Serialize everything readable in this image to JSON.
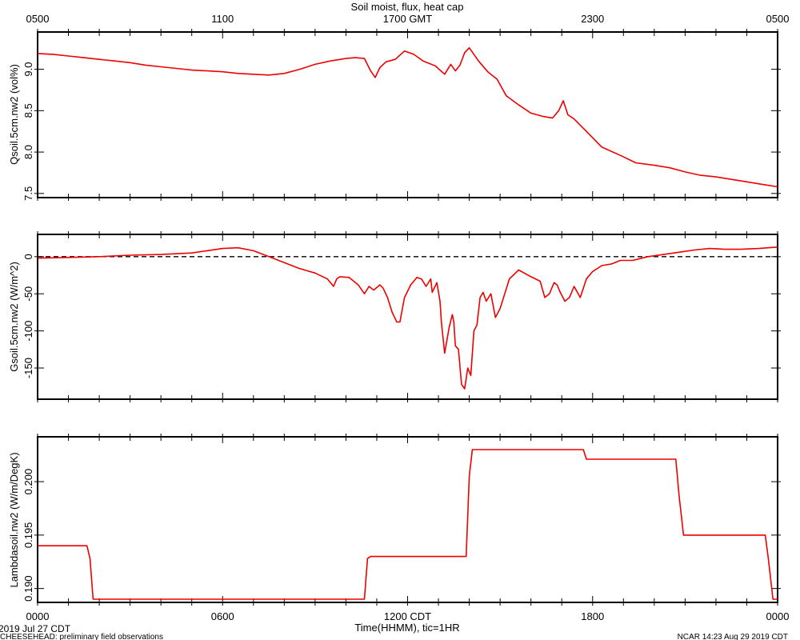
{
  "chart_data": {
    "type": "line",
    "title": "Soil moist, flux, heat cap",
    "top_axis": {
      "ticks": [
        "0500",
        "1100",
        "1700 GMT",
        "2300",
        "0500"
      ]
    },
    "bottom_axis": {
      "ticks": [
        "0000",
        "0600",
        "1200 CDT",
        "1800",
        "0000"
      ],
      "label": "Time(HHMM), tic=1HR"
    },
    "x_range_hours": [
      0,
      24
    ],
    "footer": {
      "date": "2019 Jul 27 CDT",
      "project": "CHEESEHEAD: preliminary field observations",
      "stamp": "NCAR 14:23 Aug 29 2019 CDT"
    },
    "colors": {
      "series": "#ee0000",
      "axes": "#000000"
    },
    "panels": [
      {
        "ylabel": "Qsoil.5cm.nw2 (vol%)",
        "ylim": [
          7.45,
          9.45
        ],
        "yticks": [
          7.5,
          8.0,
          8.5,
          9.0
        ],
        "ytick_labels": [
          "7.5",
          "8.0",
          "8.5",
          "9.0"
        ],
        "series": [
          {
            "x": [
              0,
              0.5,
              1,
              1.5,
              2,
              2.5,
              3,
              3.5,
              4,
              4.5,
              5,
              5.5,
              6,
              6.5,
              7,
              7.5,
              8,
              8.5,
              9,
              9.5,
              10,
              10.3,
              10.6,
              10.8,
              10.95,
              11.1,
              11.3,
              11.6,
              11.9,
              12.2,
              12.5,
              12.9,
              13.2,
              13.4,
              13.55,
              13.7,
              13.85,
              14.0,
              14.3,
              14.6,
              14.9,
              15.2,
              15.6,
              16.0,
              16.4,
              16.7,
              16.9,
              17.05,
              17.2,
              17.4,
              17.8,
              18.3,
              18.9,
              19.4,
              20.0,
              20.5,
              21.0,
              21.5,
              22.0,
              22.5,
              23.0,
              23.5,
              24.0
            ],
            "y": [
              9.19,
              9.18,
              9.16,
              9.14,
              9.12,
              9.1,
              9.08,
              9.05,
              9.03,
              9.01,
              8.99,
              8.98,
              8.97,
              8.95,
              8.94,
              8.93,
              8.95,
              9.0,
              9.06,
              9.1,
              9.13,
              9.14,
              9.13,
              8.98,
              8.9,
              9.02,
              9.09,
              9.12,
              9.22,
              9.18,
              9.1,
              9.04,
              8.94,
              9.06,
              8.98,
              9.05,
              9.2,
              9.26,
              9.1,
              8.97,
              8.88,
              8.68,
              8.57,
              8.47,
              8.43,
              8.41,
              8.5,
              8.62,
              8.45,
              8.4,
              8.25,
              8.06,
              7.96,
              7.87,
              7.84,
              7.81,
              7.76,
              7.72,
              7.7,
              7.67,
              7.64,
              7.61,
              7.58
            ]
          }
        ]
      },
      {
        "ylabel": "Gsoil.5cm.nw2 (W/m^2)",
        "ylim": [
          -192,
          30
        ],
        "yticks": [
          -150,
          -100,
          -50,
          0
        ],
        "ytick_labels": [
          "-150",
          "-100",
          "-50",
          "0"
        ],
        "reference_line": 0,
        "series": [
          {
            "x": [
              0,
              1,
              2,
              3,
              4,
              5,
              5.5,
              6,
              6.5,
              7,
              7.5,
              8,
              8.5,
              9,
              9.4,
              9.6,
              9.7,
              9.8,
              10.1,
              10.4,
              10.6,
              10.75,
              10.9,
              11.1,
              11.2,
              11.35,
              11.5,
              11.65,
              11.75,
              11.9,
              12.1,
              12.3,
              12.45,
              12.6,
              12.75,
              12.8,
              12.95,
              13.05,
              13.1,
              13.2,
              13.35,
              13.45,
              13.5,
              13.55,
              13.65,
              13.75,
              13.85,
              13.95,
              14.05,
              14.15,
              14.25,
              14.35,
              14.45,
              14.55,
              14.7,
              14.85,
              15.0,
              15.3,
              15.6,
              16.0,
              16.3,
              16.45,
              16.6,
              16.75,
              16.85,
              16.95,
              17.1,
              17.25,
              17.4,
              17.6,
              17.8,
              18.0,
              18.3,
              18.6,
              18.9,
              19.3,
              19.8,
              20.3,
              20.8,
              21.3,
              21.8,
              22.3,
              22.8,
              23.4,
              24.0
            ],
            "y": [
              -2,
              -1,
              0,
              2,
              3,
              5,
              8,
              11,
              12,
              8,
              0,
              -8,
              -16,
              -22,
              -30,
              -40,
              -30,
              -27,
              -28,
              -38,
              -50,
              -40,
              -45,
              -38,
              -42,
              -55,
              -75,
              -88,
              -88,
              -55,
              -38,
              -28,
              -30,
              -40,
              -30,
              -48,
              -35,
              -60,
              -90,
              -130,
              -95,
              -78,
              -88,
              -120,
              -125,
              -172,
              -178,
              -150,
              -160,
              -100,
              -92,
              -55,
              -48,
              -60,
              -50,
              -82,
              -70,
              -30,
              -18,
              -27,
              -33,
              -55,
              -50,
              -35,
              -38,
              -48,
              -60,
              -55,
              -40,
              -55,
              -30,
              -20,
              -12,
              -10,
              -5,
              -5,
              0,
              3,
              6,
              9,
              11,
              10,
              10,
              11,
              13
            ]
          }
        ]
      },
      {
        "ylabel": "Lambdasoil.nw2 (W/m/DegK)",
        "ylim": [
          0.1887,
          0.2042
        ],
        "yticks": [
          0.19,
          0.195,
          0.2
        ],
        "ytick_labels": [
          "0.190",
          "0.195",
          "0.200"
        ],
        "series": [
          {
            "x": [
              0,
              1.6,
              1.7,
              1.8,
              10.6,
              10.7,
              10.8,
              13.9,
              14.0,
              14.1,
              17.7,
              17.8,
              20.7,
              20.8,
              20.95,
              23.6,
              23.7,
              23.85,
              24.0
            ],
            "y": [
              0.194,
              0.194,
              0.1928,
              0.189,
              0.189,
              0.1928,
              0.193,
              0.193,
              0.2005,
              0.203,
              0.203,
              0.2021,
              0.2021,
              0.1988,
              0.195,
              0.195,
              0.1928,
              0.189,
              0.189
            ]
          }
        ]
      }
    ]
  }
}
